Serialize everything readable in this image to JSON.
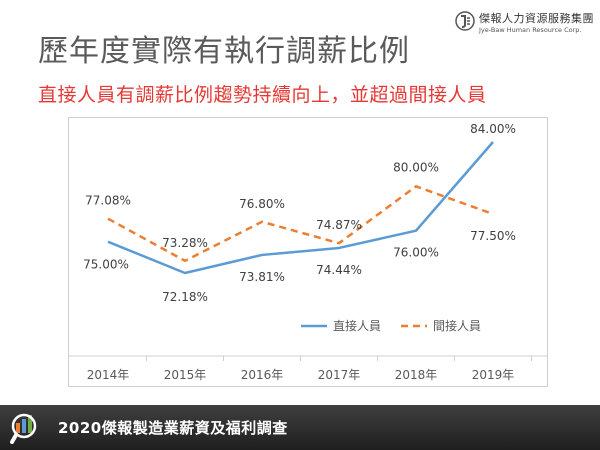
{
  "brand": {
    "name": "傑報人力資源服務集團",
    "english": "Jye-Baw Human Resource Corp."
  },
  "header": {
    "title": "歷年度實際有執行調薪比例",
    "subtitle": "直接人員有調薪比例趨勢持續向上，並超過間接人員"
  },
  "footer": {
    "text": "2020傑報製造業薪資及福利調查"
  },
  "colors": {
    "title": "#5a5a5a",
    "subtitle": "#e53935",
    "direct": "#5b9bd5",
    "indirect": "#ed7d31"
  },
  "chart_data": {
    "type": "line",
    "categories": [
      "2014年",
      "2015年",
      "2016年",
      "2017年",
      "2018年",
      "2019年"
    ],
    "series": [
      {
        "name": "直接人員",
        "values": [
          75.0,
          72.18,
          73.81,
          74.44,
          76.0,
          84.0
        ],
        "labels": [
          "75.00%",
          "72.18%",
          "73.81%",
          "74.44%",
          "76.00%",
          "84.00%"
        ],
        "style": "solid",
        "color": "#5b9bd5"
      },
      {
        "name": "間接人員",
        "values": [
          77.08,
          73.28,
          76.8,
          74.87,
          80.0,
          77.5
        ],
        "labels": [
          "77.08%",
          "73.28%",
          "76.80%",
          "74.87%",
          "80.00%",
          "77.50%"
        ],
        "style": "dashed",
        "color": "#ed7d31"
      }
    ],
    "legend_position": "bottom-right",
    "grid": false,
    "show_y_axis": false
  }
}
